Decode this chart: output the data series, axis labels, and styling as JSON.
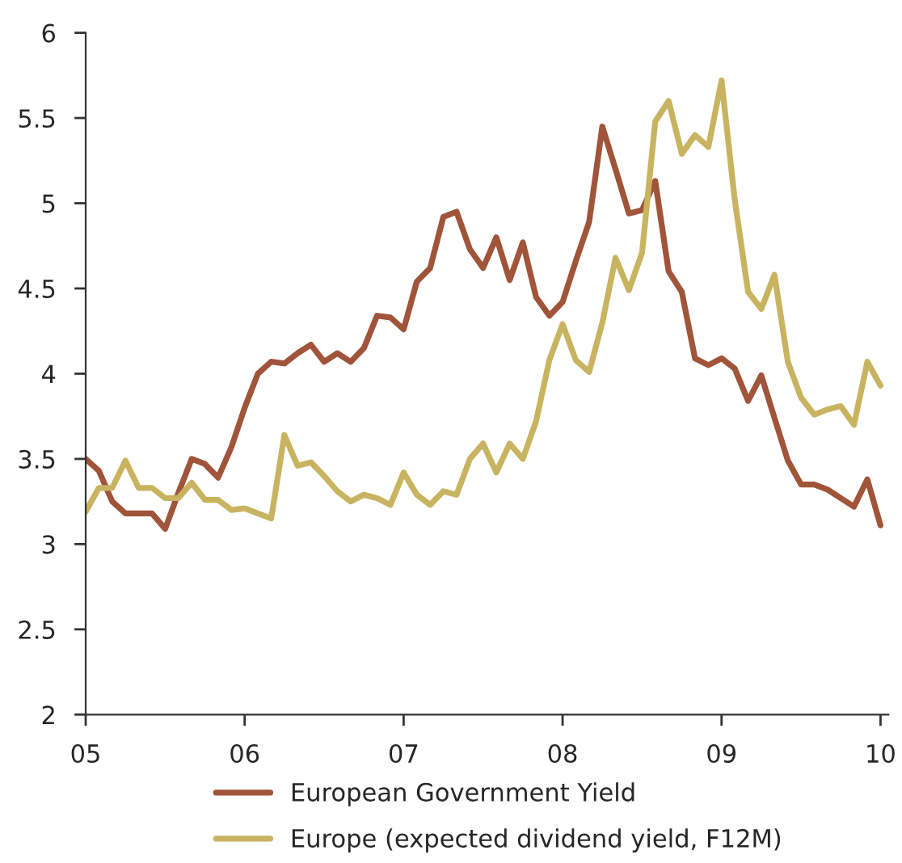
{
  "chart_data": {
    "type": "line",
    "x": [
      5.0,
      5.083,
      5.167,
      5.25,
      5.333,
      5.417,
      5.5,
      5.583,
      5.667,
      5.75,
      5.833,
      5.917,
      6.0,
      6.083,
      6.167,
      6.25,
      6.333,
      6.417,
      6.5,
      6.583,
      6.667,
      6.75,
      6.833,
      6.917,
      7.0,
      7.083,
      7.167,
      7.25,
      7.333,
      7.417,
      7.5,
      7.583,
      7.667,
      7.75,
      7.833,
      7.917,
      8.0,
      8.083,
      8.167,
      8.25,
      8.333,
      8.417,
      8.5,
      8.583,
      8.667,
      8.75,
      8.833,
      8.917,
      9.0,
      9.083,
      9.167,
      9.25,
      9.333,
      9.417,
      9.5,
      9.583,
      9.667,
      9.75,
      9.833,
      9.917,
      10.0
    ],
    "xlim": [
      5,
      10.05
    ],
    "xticks": [
      {
        "value": 5,
        "label": "05"
      },
      {
        "value": 6,
        "label": "06"
      },
      {
        "value": 7,
        "label": "07"
      },
      {
        "value": 8,
        "label": "08"
      },
      {
        "value": 9,
        "label": "09"
      },
      {
        "value": 10,
        "label": "10"
      }
    ],
    "ylim": [
      2,
      6
    ],
    "yticks": [
      2,
      2.5,
      3,
      3.5,
      4,
      4.5,
      5,
      5.5,
      6
    ],
    "grid": false,
    "legend": "bottom",
    "line_style": "solid",
    "series": [
      {
        "name": "European Government Yield",
        "color": "#a0543a",
        "values": [
          3.5,
          3.43,
          3.25,
          3.18,
          3.18,
          3.18,
          3.09,
          3.3,
          3.5,
          3.47,
          3.39,
          3.57,
          3.8,
          4.0,
          4.07,
          4.06,
          4.12,
          4.17,
          4.07,
          4.12,
          4.07,
          4.15,
          4.34,
          4.33,
          4.26,
          4.54,
          4.62,
          4.92,
          4.95,
          4.73,
          4.62,
          4.8,
          4.55,
          4.77,
          4.45,
          4.34,
          4.42,
          4.66,
          4.89,
          5.45,
          5.2,
          4.94,
          4.96,
          5.13,
          4.6,
          4.48,
          4.09,
          4.05,
          4.09,
          4.03,
          3.84,
          3.99,
          3.74,
          3.49,
          3.35,
          3.35,
          3.32,
          3.27,
          3.22,
          3.38,
          3.11
        ]
      },
      {
        "name": "Europe (expected dividend yield, F12M)",
        "color": "#c8b460",
        "values": [
          3.19,
          3.33,
          3.33,
          3.49,
          3.33,
          3.33,
          3.27,
          3.27,
          3.36,
          3.26,
          3.26,
          3.2,
          3.21,
          3.18,
          3.15,
          3.64,
          3.46,
          3.48,
          3.4,
          3.31,
          3.25,
          3.29,
          3.27,
          3.23,
          3.42,
          3.29,
          3.23,
          3.31,
          3.29,
          3.5,
          3.59,
          3.42,
          3.59,
          3.5,
          3.72,
          4.08,
          4.29,
          4.08,
          4.01,
          4.3,
          4.68,
          4.49,
          4.71,
          5.48,
          5.6,
          5.29,
          5.4,
          5.33,
          5.72,
          5.02,
          4.48,
          4.38,
          4.58,
          4.07,
          3.86,
          3.76,
          3.79,
          3.81,
          3.7,
          4.07,
          3.93
        ]
      }
    ]
  }
}
